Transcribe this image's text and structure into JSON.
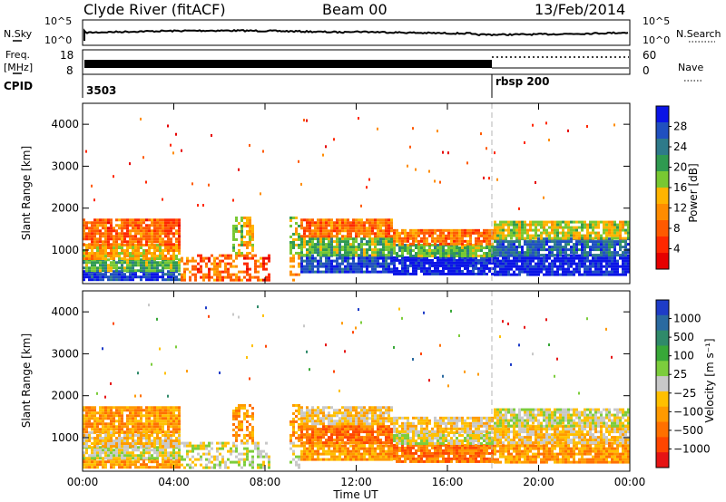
{
  "header": {
    "radar": "Clyde River (fitACF)",
    "beam": "Beam 00",
    "date": "13/Feb/2014"
  },
  "panels": {
    "nsky": {
      "left_label": "N.Sky",
      "right_label": "N.Search",
      "left_ticks": [
        "10^5",
        "10^0"
      ],
      "right_ticks": [
        "10^5",
        "10^0"
      ]
    },
    "freq": {
      "left_label_1": "Freq.",
      "left_label_2": "[MHz]",
      "right_label": "Nave",
      "left_ticks": [
        "18",
        "8"
      ],
      "right_ticks": [
        "60",
        "0"
      ]
    },
    "cpid": {
      "label": "CPID",
      "segments": [
        {
          "label": "3503",
          "start": "00:00"
        },
        {
          "label": "rbsp  200",
          "start": "18:00"
        }
      ]
    }
  },
  "chart_data": [
    {
      "type": "heatmap",
      "name": "power",
      "ylabel": "Slant Range [km]",
      "xlabel": "",
      "yticks": [
        1000,
        2000,
        3000,
        4000
      ],
      "ylim": [
        200,
        4500
      ],
      "xticks": [
        "00:00",
        "04:00",
        "08:00",
        "12:00",
        "16:00",
        "20:00",
        "00:00"
      ],
      "xlim_hours": [
        0,
        24
      ],
      "colorbar": {
        "label": "Power [dB]",
        "ticks": [
          "4",
          "8",
          "12",
          "16",
          "20",
          "24",
          "28"
        ],
        "colors": [
          "#0a14e6",
          "#2050c0",
          "#2e7a8a",
          "#2f9a50",
          "#78c832",
          "#ffb400",
          "#ff8c00",
          "#ff5a00",
          "#ff2800",
          "#e60000"
        ]
      },
      "marker_hour": 18
    },
    {
      "type": "heatmap",
      "name": "velocity",
      "ylabel": "Slant Range [km]",
      "xlabel": "Time UT",
      "yticks": [
        1000,
        2000,
        3000,
        4000
      ],
      "ylim": [
        200,
        4500
      ],
      "xticks": [
        "00:00",
        "04:00",
        "08:00",
        "12:00",
        "16:00",
        "20:00",
        "00:00"
      ],
      "xlim_hours": [
        0,
        24
      ],
      "colorbar": {
        "label": "Velocity [m s⁻¹]",
        "ticks": [
          "1000",
          "500",
          "100",
          "25",
          "−25",
          "−100",
          "−500",
          "−1000"
        ],
        "colors": [
          "#1e3cc8",
          "#2a6aa0",
          "#2f8a6a",
          "#38a838",
          "#7ccd3c",
          "#c8c8c8",
          "#ffc000",
          "#ff9a00",
          "#ff7000",
          "#ff4600",
          "#e61414"
        ]
      },
      "marker_hour": 18
    }
  ]
}
